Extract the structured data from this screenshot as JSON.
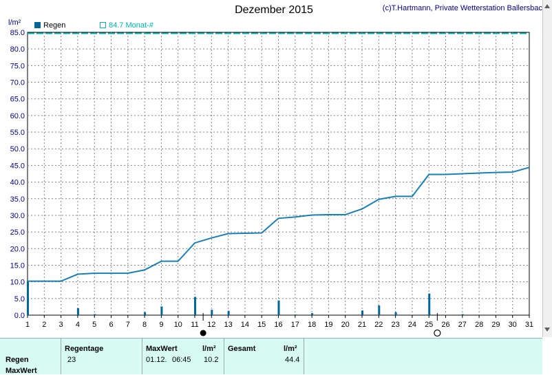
{
  "header": {
    "title": "Dezember 2015",
    "copyright": "(c)T.Hartmann, Private Wetterstation Ballersbach",
    "unit": "l/m²"
  },
  "legend": {
    "series_label": "Regen",
    "reference_label": "84.7 Monat-#",
    "series_color": "#006699",
    "reference_color": "#00b0b0"
  },
  "chart_data": {
    "type": "bar",
    "title": "Dezember 2015",
    "ylabel": "l/m²",
    "ylim": [
      0,
      85
    ],
    "xlim": [
      1,
      31
    ],
    "grid": true,
    "x_ticks": [
      1,
      2,
      3,
      4,
      5,
      6,
      7,
      8,
      9,
      10,
      11,
      12,
      13,
      14,
      15,
      16,
      17,
      18,
      19,
      20,
      21,
      22,
      23,
      24,
      25,
      26,
      27,
      28,
      29,
      30,
      31
    ],
    "y_ticks": [
      "0.0",
      "5.0",
      "10.0",
      "15.0",
      "20.0",
      "25.0",
      "30.0",
      "35.0",
      "40.0",
      "45.0",
      "50.0",
      "55.0",
      "60.0",
      "65.0",
      "70.0",
      "75.0",
      "80.0",
      "85.0"
    ],
    "reference_line": 84.7,
    "series": [
      {
        "name": "Regen",
        "type": "bar",
        "x": [
          1,
          4,
          5,
          8,
          9,
          11,
          12,
          13,
          16,
          17,
          18,
          21,
          22,
          23,
          25,
          27
        ],
        "values": [
          10.2,
          2.1,
          0.3,
          0.9,
          2.6,
          5.5,
          1.6,
          1.3,
          4.4,
          0.2,
          0.6,
          1.4,
          2.9,
          0.9,
          6.5,
          0.3
        ]
      },
      {
        "type": "line",
        "x": [
          1,
          3,
          4,
          5,
          7,
          8,
          9,
          10,
          11,
          12,
          13,
          14,
          15,
          16,
          17,
          18,
          19,
          20,
          21,
          22,
          23,
          24,
          25,
          26,
          27,
          28,
          29,
          30,
          31
        ],
        "values": [
          10.2,
          10.2,
          12.3,
          12.6,
          12.6,
          13.6,
          16.2,
          16.2,
          21.7,
          23.2,
          24.5,
          24.6,
          24.7,
          29.1,
          29.5,
          30.1,
          30.2,
          30.2,
          31.9,
          34.8,
          35.7,
          35.7,
          42.3,
          42.3,
          42.5,
          42.7,
          42.9,
          43.0,
          44.4
        ]
      }
    ],
    "markers": [
      {
        "type": "new-moon",
        "x": 11.5
      },
      {
        "type": "full-moon",
        "x": 25.5
      }
    ]
  },
  "stats": {
    "row_label_1": "Regen",
    "row_label_2": "MaxWert",
    "col_regentage": "Regentage",
    "val_regentage": "23",
    "col_maxwert": "MaxWert",
    "col_unit_1": "l/m²",
    "val_max_date": "01.12.",
    "val_max_time": "06:45",
    "val_max": "10.2",
    "col_gesamt": "Gesamt",
    "col_unit_2": "l/m²",
    "val_gesamt": "44.4"
  }
}
